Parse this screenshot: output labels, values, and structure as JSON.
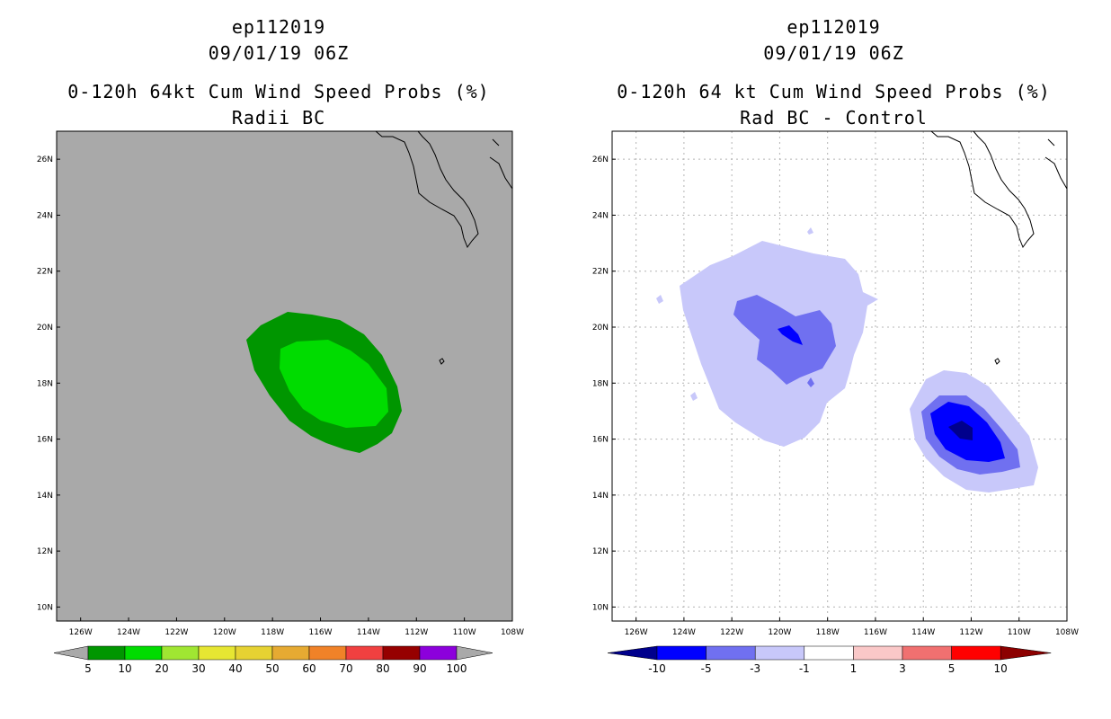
{
  "left_panel": {
    "title_line1": "ep112019",
    "title_line2": "09/01/19 06Z",
    "title_line3": "0-120h 64kt Cum Wind Speed Probs (%)",
    "title_line4": "Radii BC",
    "background_color": "#a9a9a9",
    "legend_labels": [
      "5",
      "10",
      "20",
      "30",
      "40",
      "50",
      "60",
      "70",
      "80",
      "90",
      "100"
    ],
    "legend_colors": [
      "#009600",
      "#00dc00",
      "#a0e632",
      "#e6e632",
      "#e6d232",
      "#e6aa32",
      "#f08228",
      "#f04040",
      "#960000",
      "#8c00dc"
    ],
    "legend_end_color": "#a9a9a9"
  },
  "right_panel": {
    "title_line1": "ep112019",
    "title_line2": "09/01/19 06Z",
    "title_line3": "0-120h 64 kt Cum Wind Speed Probs (%)",
    "title_line4": "Rad BC - Control",
    "legend_labels": [
      "-10",
      "-5",
      "-3",
      "-1",
      "1",
      "3",
      "5",
      "10"
    ],
    "legend_colors": [
      "#0000ff",
      "#7070f0",
      "#c8c8fa",
      "#ffffff",
      "#fac8c8",
      "#f07070",
      "#ff0000"
    ],
    "legend_low_color": "#00008c",
    "legend_high_color": "#8c0000"
  },
  "axes": {
    "lon_labels": [
      "126W",
      "124W",
      "122W",
      "120W",
      "118W",
      "116W",
      "114W",
      "112W",
      "110W",
      "108W"
    ],
    "lat_labels": [
      "26N",
      "24N",
      "22N",
      "20N",
      "18N",
      "16N",
      "14N",
      "12N",
      "10N"
    ]
  }
}
